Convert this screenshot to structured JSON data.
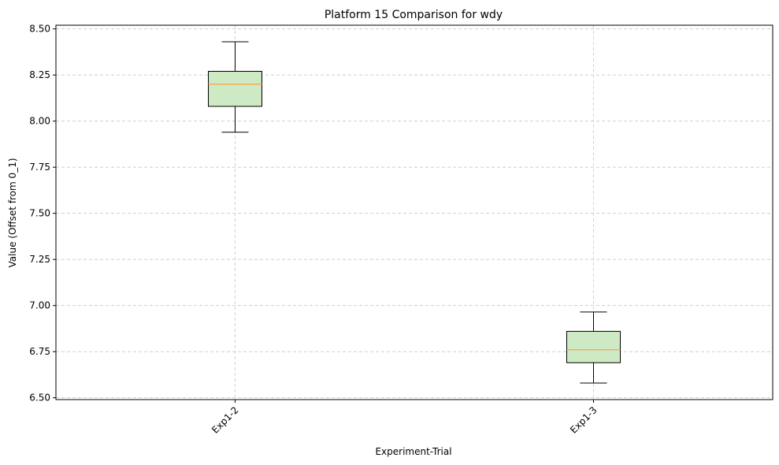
{
  "chart_data": {
    "type": "box",
    "title": "Platform 15 Comparison for wdy",
    "xlabel": "Experiment-Trial",
    "ylabel": "Value (Offset from 0_1)",
    "ylim": [
      6.49,
      8.52
    ],
    "yticks": [
      "6.50",
      "6.75",
      "7.00",
      "7.25",
      "7.50",
      "7.75",
      "8.00",
      "8.25",
      "8.50"
    ],
    "grid": true,
    "categories": [
      "Exp1-2",
      "Exp1-3"
    ],
    "boxes": [
      {
        "category": "Exp1-2",
        "whisker_low": 7.94,
        "q1": 8.08,
        "median": 8.2,
        "q3": 8.27,
        "whisker_high": 8.43
      },
      {
        "category": "Exp1-3",
        "whisker_low": 6.58,
        "q1": 6.69,
        "median": 6.76,
        "q3": 6.86,
        "whisker_high": 6.965
      }
    ],
    "colors": {
      "box_fill": "#cdeac5",
      "median": "#f4a142",
      "grid": "#c8c8c8",
      "axis": "#000000"
    }
  }
}
